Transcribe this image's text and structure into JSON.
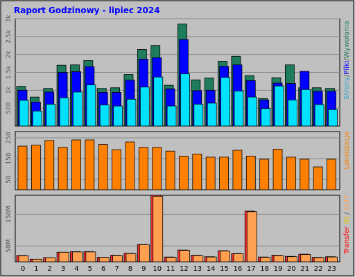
{
  "chart_data": {
    "type": "bar",
    "title": "Raport Godzinowy -  lipiec 2024",
    "categories": [
      "0",
      "1",
      "2",
      "3",
      "4",
      "5",
      "6",
      "7",
      "8",
      "9",
      "10",
      "11",
      "12",
      "13",
      "14",
      "15",
      "16",
      "17",
      "18",
      "19",
      "20",
      "21",
      "22",
      "23"
    ],
    "legend": {
      "panel1": [
        "Strony",
        "/",
        "Pliki",
        "/",
        "Wywołania"
      ],
      "panel2": "Lokalizacje",
      "panel3": [
        "Transfer",
        "IN",
        "/",
        "OUT"
      ]
    },
    "panels": [
      {
        "id": "hits",
        "ylim": [
          0,
          3000
        ],
        "ticks": [
          {
            "v": 500,
            "label": "500"
          },
          {
            "v": 1000,
            "label": "1k"
          },
          {
            "v": 1500,
            "label": "1.5k"
          },
          {
            "v": 2000,
            "label": "2k"
          },
          {
            "v": 2500,
            "label": "2.5k"
          },
          {
            "v": 3000,
            "label": "3k"
          }
        ],
        "series": [
          {
            "name": "Wywołania",
            "color": "#1e7b5c",
            "values": [
              1110,
              810,
              1050,
              1700,
              1710,
              1830,
              1050,
              1070,
              1440,
              2140,
              2250,
              1140,
              2850,
              1290,
              1340,
              1810,
              1950,
              1410,
              770,
              1350,
              1710,
              1070,
              1070,
              1050
            ]
          },
          {
            "name": "Pliki",
            "color": "#0000ff",
            "values": [
              1000,
              670,
              950,
              1500,
              1520,
              1660,
              940,
              940,
              1280,
              1870,
              1910,
              1040,
              2420,
              990,
              1000,
              1670,
              1710,
              1270,
              730,
              1200,
              1190,
              1530,
              970,
              970
            ]
          },
          {
            "name": "Strony",
            "color": "#00e1ff",
            "values": [
              720,
              420,
              610,
              790,
              950,
              1150,
              590,
              560,
              750,
              1090,
              1370,
              560,
              1460,
              610,
              640,
              1360,
              980,
              810,
              490,
              1120,
              730,
              1020,
              600,
              460
            ]
          }
        ]
      },
      {
        "id": "visits",
        "ylim": [
          0,
          280
        ],
        "ticks": [
          {
            "v": 50,
            "label": "50"
          },
          {
            "v": 150,
            "label": "150"
          },
          {
            "v": 250,
            "label": "250"
          }
        ],
        "series": [
          {
            "name": "Lokalizacje",
            "color": "#ff8000",
            "values": [
              210,
              215,
              237,
              204,
              240,
              240,
              218,
              193,
              230,
              204,
              204,
              186,
              162,
              172,
              157,
              157,
              190,
              162,
              147,
              195,
              157,
              147,
              110,
              147
            ]
          }
        ]
      },
      {
        "id": "transfer",
        "ylim": [
          0,
          210
        ],
        "ticks": [
          {
            "v": 50,
            "label": "50M"
          },
          {
            "v": 150,
            "label": "150M"
          }
        ],
        "series": [
          {
            "name": "IN",
            "color": "#ff3030",
            "values": [
              20,
              8,
              13,
              30,
              32,
              32,
              14,
              21,
              27,
              55,
              210,
              15,
              37,
              21,
              16,
              35,
              26,
              160,
              15,
              21,
              17,
              24,
              14,
              16
            ]
          },
          {
            "name": "OUT",
            "color": "#ffa050",
            "values": [
              19,
              8,
              13,
              30,
              31,
              31,
              14,
              20,
              26,
              54,
              207,
              14,
              36,
              20,
              15,
              34,
              25,
              158,
              14,
              20,
              16,
              23,
              13,
              15
            ]
          }
        ]
      }
    ]
  }
}
